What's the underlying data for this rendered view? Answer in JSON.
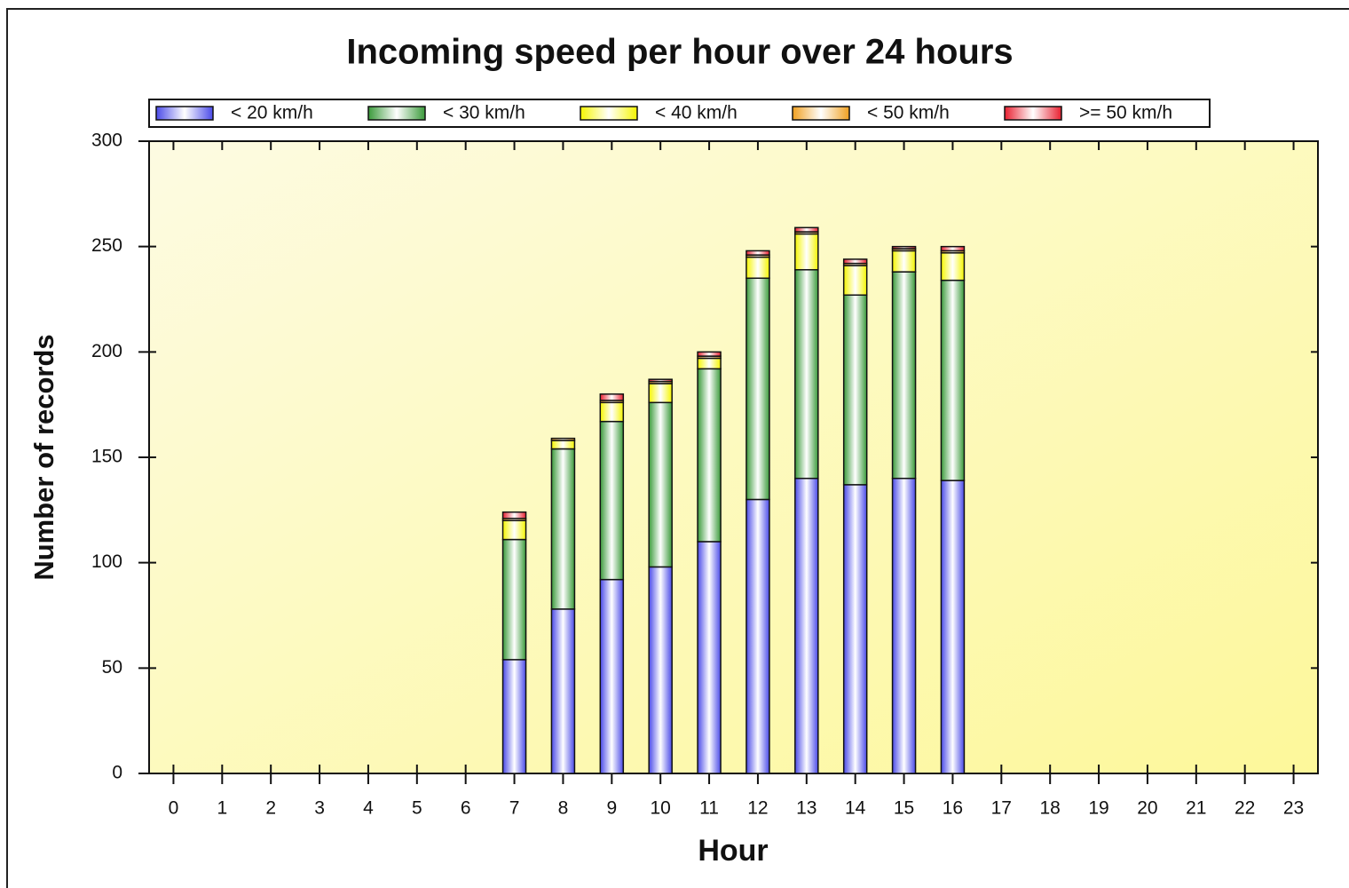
{
  "chart_data": {
    "type": "stacked_bar",
    "title": "Incoming speed per hour over 24 hours",
    "x_label": "Hour",
    "y_label": "Number of records",
    "categories": [
      "0",
      "1",
      "2",
      "3",
      "4",
      "5",
      "6",
      "7",
      "8",
      "9",
      "10",
      "11",
      "12",
      "13",
      "14",
      "15",
      "16",
      "17",
      "18",
      "19",
      "20",
      "21",
      "22",
      "23"
    ],
    "series": [
      {
        "name": "< 20 km/h",
        "color": "#4a4ae8",
        "values": [
          0,
          0,
          0,
          0,
          0,
          0,
          0,
          54,
          78,
          92,
          98,
          110,
          130,
          140,
          137,
          140,
          139,
          0,
          0,
          0,
          0,
          0,
          0,
          0
        ]
      },
      {
        "name": "< 30 km/h",
        "color": "#3a9a3a",
        "values": [
          0,
          0,
          0,
          0,
          0,
          0,
          0,
          57,
          76,
          75,
          78,
          82,
          105,
          99,
          90,
          98,
          95,
          0,
          0,
          0,
          0,
          0,
          0,
          0
        ]
      },
      {
        "name": "< 40 km/h",
        "color": "#f5f500",
        "values": [
          0,
          0,
          0,
          0,
          0,
          0,
          0,
          9,
          4,
          9,
          9,
          5,
          10,
          17,
          14,
          10,
          13,
          0,
          0,
          0,
          0,
          0,
          0,
          0
        ]
      },
      {
        "name": "< 50 km/h",
        "color": "#f0a020",
        "values": [
          0,
          0,
          0,
          0,
          0,
          0,
          0,
          1,
          1,
          1,
          1,
          1,
          1,
          1,
          1,
          1,
          1,
          0,
          0,
          0,
          0,
          0,
          0,
          0
        ]
      },
      {
        "name": ">= 50 km/h",
        "color": "#e82030",
        "values": [
          0,
          0,
          0,
          0,
          0,
          0,
          0,
          3,
          0,
          3,
          1,
          2,
          2,
          2,
          2,
          1,
          2,
          0,
          0,
          0,
          0,
          0,
          0,
          0
        ]
      }
    ],
    "ylim": [
      0,
      300
    ],
    "yticks": [
      0,
      50,
      100,
      150,
      200,
      250,
      300
    ]
  }
}
